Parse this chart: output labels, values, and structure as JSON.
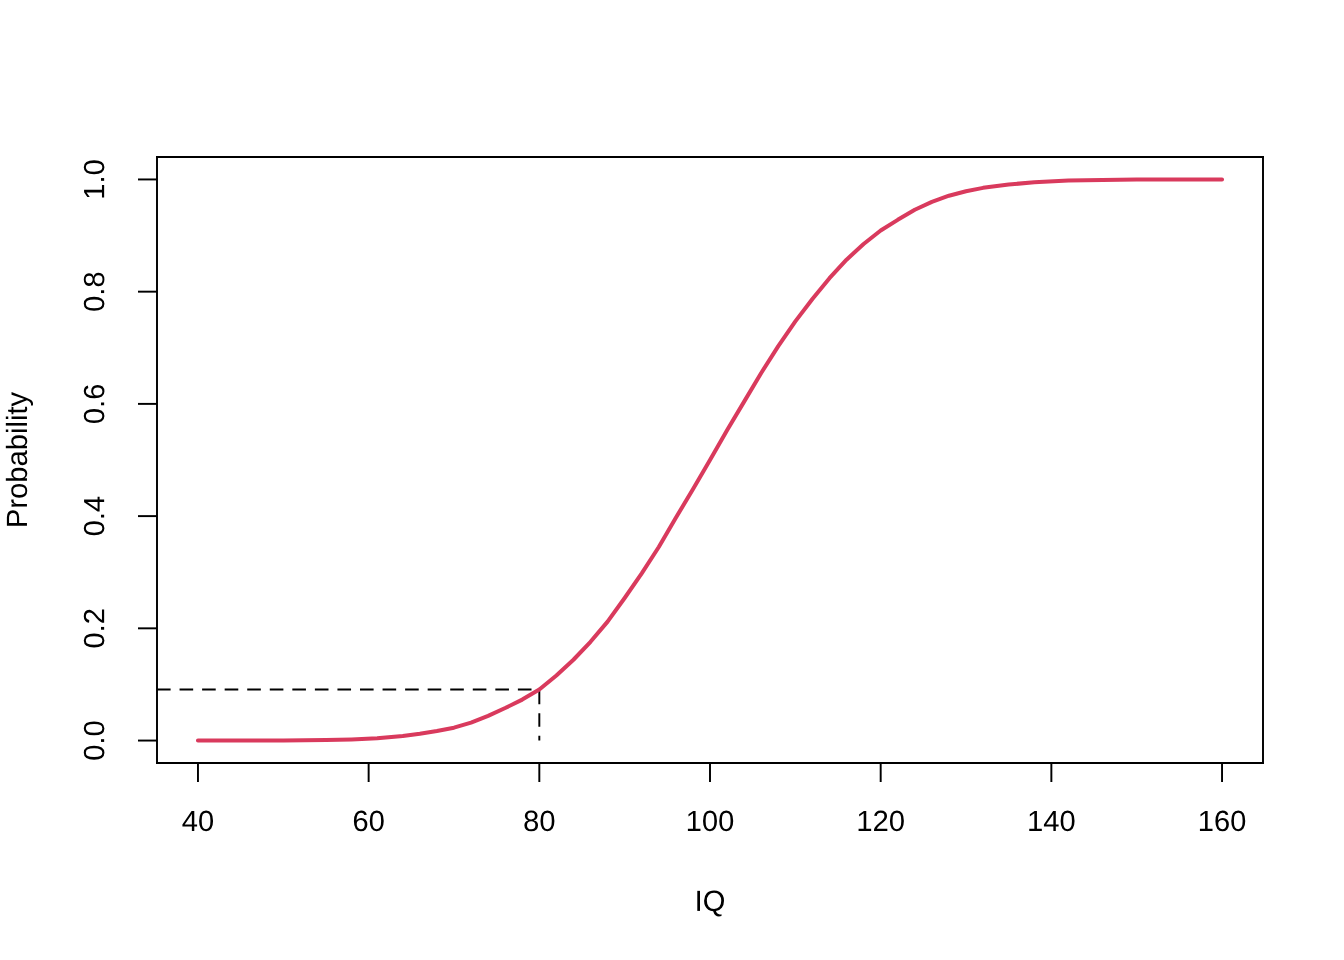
{
  "chart_data": {
    "type": "line",
    "xlabel": "IQ",
    "ylabel": "Probability",
    "xlim": [
      35.2,
      164.8
    ],
    "ylim": [
      -0.04,
      1.04
    ],
    "xticks": [
      40,
      60,
      80,
      100,
      120,
      140,
      160
    ],
    "yticks": [
      {
        "value": 0,
        "label": "0.0"
      },
      0.2,
      0.4,
      0.6,
      0.8,
      {
        "value": 1,
        "label": "1.0"
      }
    ],
    "series": [
      {
        "color": "#d93a5d",
        "x": [
          40,
          45,
          50,
          55,
          58,
          61,
          64,
          66,
          68,
          70,
          72,
          74,
          76,
          78,
          80,
          82,
          84,
          86,
          88,
          90,
          92,
          94,
          96,
          98,
          100,
          102,
          104,
          106,
          108,
          110,
          112,
          114,
          116,
          118,
          120,
          122,
          124,
          126,
          128,
          130,
          132,
          135,
          138,
          142,
          146,
          150,
          155,
          160
        ],
        "values": [
          0.0,
          0.0,
          0.0,
          0.001,
          0.002,
          0.004,
          0.008,
          0.012,
          0.017,
          0.023,
          0.032,
          0.044,
          0.058,
          0.073,
          0.091,
          0.116,
          0.144,
          0.176,
          0.212,
          0.254,
          0.298,
          0.345,
          0.397,
          0.448,
          0.5,
          0.553,
          0.604,
          0.655,
          0.703,
          0.747,
          0.787,
          0.824,
          0.857,
          0.885,
          0.909,
          0.928,
          0.946,
          0.96,
          0.971,
          0.979,
          0.985,
          0.991,
          0.995,
          0.998,
          0.999,
          1.0,
          1.0,
          1.0
        ]
      },
      {
        "type": "line",
        "color": "#000000",
        "line_style": "dashed",
        "x": [
          35.2,
          80,
          80
        ],
        "values": [
          0.091,
          0.091,
          0
        ]
      }
    ]
  }
}
